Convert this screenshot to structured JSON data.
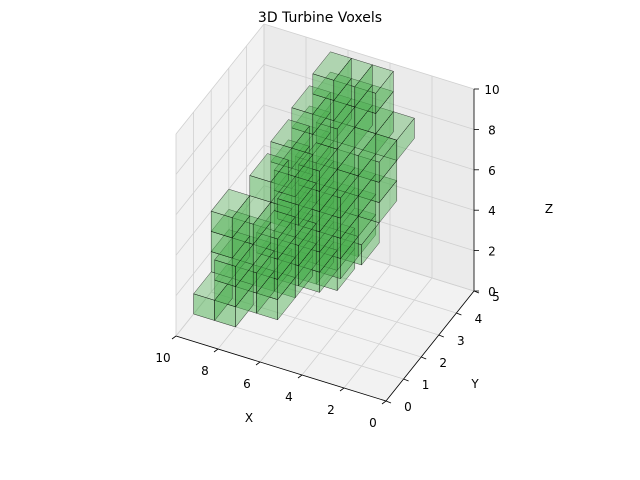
{
  "chart_data": {
    "type": "voxel3d",
    "title": "3D Turbine Voxels",
    "xlabel": "X",
    "ylabel": "Y",
    "zlabel": "Z",
    "xlim": [
      0,
      10
    ],
    "ylim": [
      0,
      5
    ],
    "zlim": [
      0,
      10
    ],
    "xticks": [
      "0",
      "2",
      "4",
      "6",
      "8",
      "10"
    ],
    "yticks": [
      "0",
      "1",
      "2",
      "3",
      "4",
      "5"
    ],
    "zticks": [
      "0",
      "2",
      "4",
      "6",
      "8",
      "10"
    ],
    "grid": true,
    "voxel_face_color": "#4caf50",
    "voxel_face_opacity": 0.5,
    "voxel_edge_color": "#000000",
    "voxels": [
      [
        3,
        1,
        4
      ],
      [
        3,
        1,
        5
      ],
      [
        3,
        2,
        4
      ],
      [
        3,
        2,
        5
      ],
      [
        4,
        1,
        4
      ],
      [
        4,
        1,
        5
      ],
      [
        4,
        2,
        5
      ],
      [
        5,
        2,
        4
      ],
      [
        5,
        2,
        5
      ],
      [
        4,
        1,
        6
      ],
      [
        4,
        2,
        6
      ],
      [
        4,
        1,
        7
      ],
      [
        4,
        2,
        7
      ],
      [
        4,
        1,
        8
      ],
      [
        4,
        2,
        8
      ],
      [
        3,
        2,
        6
      ],
      [
        5,
        2,
        6
      ],
      [
        3,
        2,
        7
      ],
      [
        5,
        2,
        7
      ],
      [
        3,
        3,
        8
      ],
      [
        4,
        3,
        8
      ],
      [
        4,
        3,
        9
      ],
      [
        4,
        2,
        9
      ],
      [
        3,
        3,
        9
      ],
      [
        5,
        3,
        8
      ],
      [
        6,
        3,
        8
      ],
      [
        6,
        3,
        7
      ],
      [
        6,
        3,
        6
      ],
      [
        7,
        3,
        6
      ],
      [
        7,
        3,
        5
      ],
      [
        6,
        2,
        6
      ],
      [
        6,
        2,
        5
      ],
      [
        2,
        2,
        7
      ],
      [
        2,
        2,
        6
      ],
      [
        2,
        2,
        8
      ],
      [
        2,
        3,
        8
      ],
      [
        3,
        2,
        8
      ],
      [
        4,
        3,
        10
      ],
      [
        3,
        3,
        10
      ],
      [
        5,
        3,
        10
      ],
      [
        5,
        3,
        9
      ],
      [
        2,
        1,
        5
      ],
      [
        3,
        1,
        6
      ],
      [
        3,
        1,
        7
      ],
      [
        5,
        1,
        6
      ],
      [
        5,
        1,
        4
      ],
      [
        4,
        1,
        3
      ],
      [
        5,
        1,
        3
      ],
      [
        4,
        2,
        3
      ],
      [
        5,
        2,
        3
      ],
      [
        4,
        2,
        2
      ],
      [
        5,
        2,
        2
      ],
      [
        6,
        2,
        2
      ],
      [
        6,
        2,
        3
      ],
      [
        6,
        2,
        4
      ],
      [
        6,
        1,
        4
      ],
      [
        6,
        1,
        3
      ],
      [
        6,
        1,
        2
      ],
      [
        7,
        2,
        3
      ],
      [
        6,
        1,
        1
      ],
      [
        6,
        2,
        1
      ],
      [
        7,
        1,
        1
      ],
      [
        7,
        2,
        1
      ],
      [
        7,
        1,
        2
      ],
      [
        8,
        2,
        2
      ],
      [
        8,
        2,
        3
      ],
      [
        8,
        2,
        1
      ],
      [
        8,
        1,
        1
      ],
      [
        8,
        1,
        0
      ],
      [
        9,
        1,
        0
      ],
      [
        8,
        1,
        2
      ],
      [
        9,
        2,
        2
      ],
      [
        9,
        2,
        1
      ],
      [
        9,
        2,
        3
      ],
      [
        7,
        3,
        3
      ],
      [
        7,
        3,
        4
      ],
      [
        8,
        3,
        4
      ]
    ]
  }
}
